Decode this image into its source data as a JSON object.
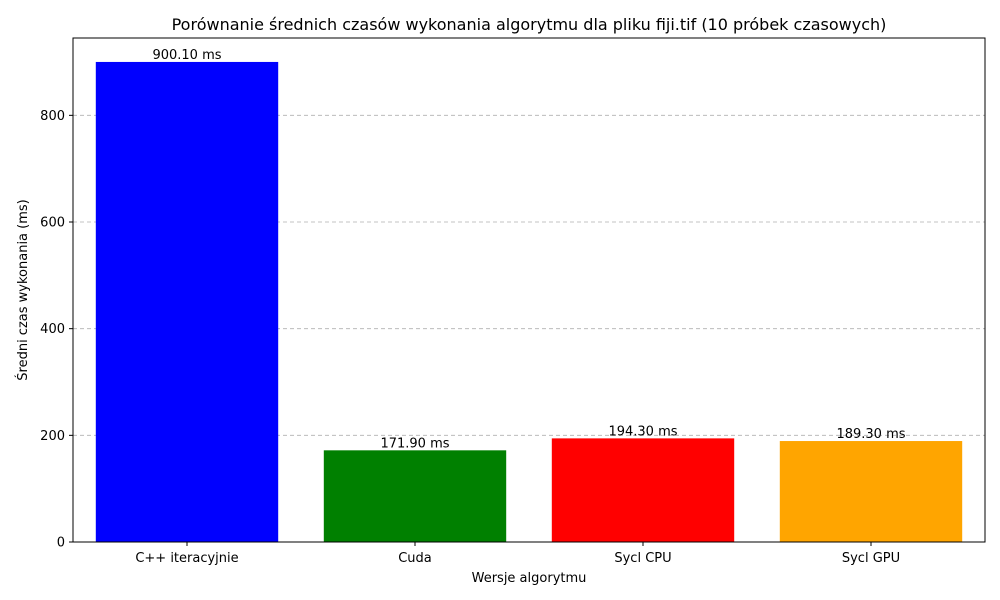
{
  "chart_data": {
    "type": "bar",
    "title": "Porównanie średnich czasów wykonania algorytmu dla pliku fiji.tif (10 próbek czasowych)",
    "xlabel": "Wersje algorytmu",
    "ylabel": "Średni czas wykonania (ms)",
    "categories": [
      "C++ iteracyjnie",
      "Cuda",
      "Sycl CPU",
      "Sycl GPU"
    ],
    "values": [
      900.1,
      171.9,
      194.3,
      189.3
    ],
    "value_labels": [
      "900.10 ms",
      "171.90 ms",
      "194.30 ms",
      "189.30 ms"
    ],
    "colors": [
      "#0000ff",
      "#008000",
      "#ff0000",
      "#ffa500"
    ],
    "ylim": [
      0,
      945
    ],
    "yticks": [
      0,
      200,
      400,
      600,
      800
    ],
    "grid": "y-dashed",
    "legend": "none"
  }
}
